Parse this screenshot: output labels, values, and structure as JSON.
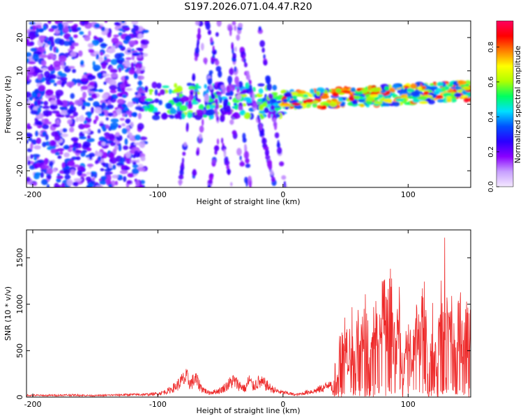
{
  "chart_data": [
    {
      "type": "heatmap",
      "title": "S197.2026.071.04.47.R20",
      "xlabel": "Height of straight line (km)",
      "ylabel": "Frequency (Hz)",
      "xlim": [
        -205,
        150
      ],
      "ylim": [
        -25,
        25
      ],
      "xticks": [
        -200,
        -100,
        0,
        100
      ],
      "xtick_labels": [
        "-200",
        "-100",
        "0",
        "100"
      ],
      "yticks": [
        -20,
        -10,
        0,
        10,
        20
      ],
      "ytick_labels": [
        "-20",
        "-10",
        "0",
        "10",
        "20"
      ],
      "colorbar": {
        "label": "Normalized spectral amplitude",
        "range": [
          0,
          0.95
        ],
        "ticks": [
          0.0,
          0.2,
          0.4,
          0.6,
          0.8
        ],
        "tick_labels": [
          "0.0",
          "0.2",
          "0.4",
          "0.6",
          "0.8"
        ],
        "colors": [
          "#f4e8ff",
          "#c8a0ff",
          "#8a00ff",
          "#2a00ff",
          "#0050ff",
          "#00e0ff",
          "#00ff60",
          "#b0ff00",
          "#ffff00",
          "#ff8000",
          "#ff0000",
          "#ff0060"
        ]
      },
      "regions": [
        {
          "name": "diffuse scatter",
          "x": [
            -205,
            -110
          ],
          "freq": [
            -25,
            25
          ],
          "level": 0.25
        },
        {
          "name": "transition band",
          "x": [
            -110,
            0
          ],
          "freq": [
            -5,
            5
          ],
          "level": 0.35
        },
        {
          "name": "slanted streaks",
          "x": [
            -80,
            0
          ],
          "freq": [
            -25,
            25
          ],
          "level": 0.25
        },
        {
          "name": "strong narrow band",
          "x": [
            0,
            150
          ],
          "freq": [
            -2,
            6
          ],
          "level": 0.5,
          "peak": {
            "x": 21,
            "freq": 1,
            "value": 0.9
          }
        }
      ]
    },
    {
      "type": "line",
      "xlabel": "Height of straight line (km)",
      "ylabel": "SNR (10 * v/v)",
      "xlim": [
        -205,
        150
      ],
      "ylim": [
        0,
        1800
      ],
      "xticks": [
        -200,
        -100,
        0,
        100
      ],
      "xtick_labels": [
        "-200",
        "-100",
        "0",
        "100"
      ],
      "yticks": [
        0,
        500,
        1000,
        1500
      ],
      "ytick_labels": [
        "0",
        "500",
        "1000",
        "1500"
      ],
      "series": [
        {
          "name": "SNR",
          "color": "#ee2a2a",
          "x": [
            -205,
            -190,
            -170,
            -150,
            -130,
            -110,
            -100,
            -92,
            -85,
            -80,
            -77,
            -74,
            -70,
            -65,
            -60,
            -55,
            -50,
            -45,
            -40,
            -35,
            -30,
            -27,
            -24,
            -20,
            -15,
            -10,
            -5,
            0,
            5,
            10,
            15,
            20,
            25,
            30,
            35,
            38,
            40,
            42,
            44,
            46,
            48,
            50,
            52,
            55,
            58,
            60,
            63,
            66,
            70,
            73,
            76,
            80,
            83,
            86,
            90,
            93,
            96,
            100,
            103,
            106,
            110,
            113,
            116,
            120,
            123,
            126,
            130,
            132,
            135,
            138,
            141,
            144,
            147,
            150
          ],
          "y": [
            25,
            22,
            28,
            20,
            30,
            35,
            45,
            80,
            150,
            230,
            260,
            180,
            240,
            120,
            60,
            70,
            90,
            150,
            220,
            160,
            110,
            230,
            140,
            200,
            180,
            120,
            80,
            60,
            50,
            30,
            45,
            70,
            80,
            110,
            140,
            240,
            20,
            500,
            350,
            950,
            700,
            1050,
            600,
            980,
            400,
            1230,
            800,
            1100,
            500,
            1300,
            700,
            1450,
            1000,
            1440,
            600,
            1250,
            300,
            1200,
            400,
            1050,
            900,
            1400,
            300,
            1100,
            500,
            1300,
            1800,
            900,
            1100,
            600,
            1200,
            800,
            1050,
            900
          ]
        }
      ]
    }
  ]
}
